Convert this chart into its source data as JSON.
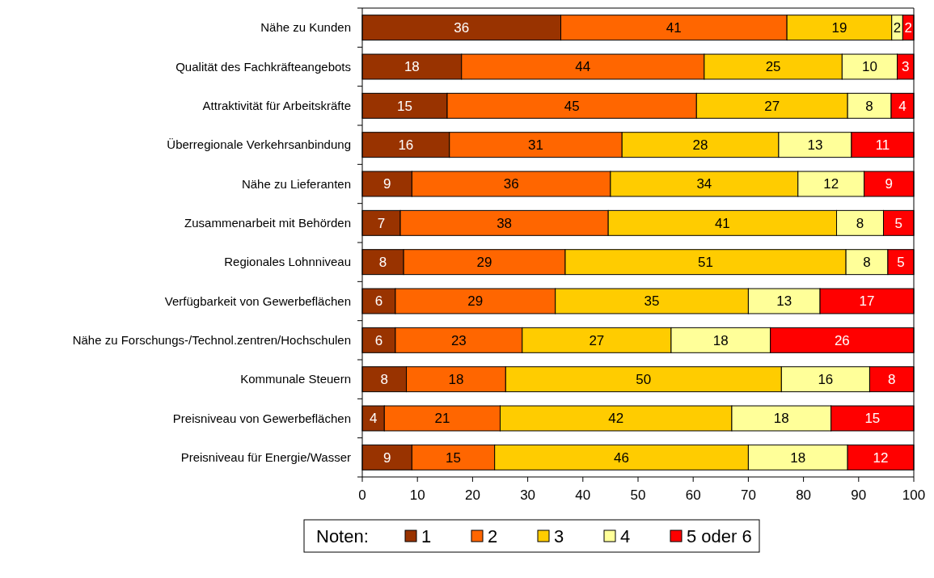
{
  "chart_data": {
    "type": "bar",
    "orientation": "horizontal",
    "stacked": true,
    "categories": [
      "Nähe zu Kunden",
      "Qualität des Fachkräfteangebots",
      "Attraktivität für Arbeitskräfte",
      "Überregionale Verkehrsanbindung",
      "Nähe zu Lieferanten",
      "Zusammenarbeit mit Behörden",
      "Regionales Lohnniveau",
      "Verfügbarkeit von Gewerbeflächen",
      "Nähe zu Forschungs-/Technol.zentren/Hochschulen",
      "Kommunale Steuern",
      "Preisniveau von Gewerbeflächen",
      "Preisniveau für Energie/Wasser"
    ],
    "series": [
      {
        "name": "1",
        "color": "#993300",
        "values": [
          36,
          18,
          15.4,
          15.8,
          9,
          6.9,
          7.5,
          6,
          6,
          8,
          4,
          9
        ],
        "value_labels": [
          "36",
          "18",
          "15",
          "16",
          "9",
          "7",
          "8",
          "6",
          "6",
          "8",
          "4",
          "9"
        ]
      },
      {
        "name": "2",
        "color": "#ff6600",
        "values": [
          41,
          44,
          45.2,
          31.3,
          36,
          37.7,
          29.3,
          29,
          23,
          18,
          21,
          15
        ],
        "value_labels": [
          "41",
          "44",
          "45",
          "31",
          "36",
          "38",
          "29",
          "29",
          "23",
          "18",
          "21",
          "15"
        ]
      },
      {
        "name": "3",
        "color": "#ffcc00",
        "values": [
          19,
          25,
          27.4,
          28.4,
          34,
          41.4,
          50.9,
          35,
          27,
          50,
          42,
          46
        ],
        "value_labels": [
          "19",
          "25",
          "27",
          "28",
          "34",
          "41",
          "51",
          "35",
          "27",
          "50",
          "42",
          "46"
        ]
      },
      {
        "name": "4",
        "color": "#ffff99",
        "values": [
          2,
          10,
          7.9,
          13.2,
          12,
          8.5,
          7.6,
          13,
          18,
          16,
          18,
          18
        ],
        "value_labels": [
          "2",
          "10",
          "8",
          "13",
          "12",
          "8",
          "8",
          "13",
          "18",
          "16",
          "18",
          "18"
        ]
      },
      {
        "name": "5 oder 6",
        "color": "#ff0000",
        "values": [
          2,
          3,
          4.1,
          11.3,
          9,
          5.5,
          4.7,
          17,
          26,
          8,
          15,
          12
        ],
        "value_labels": [
          "2",
          "3",
          "4",
          "11",
          "9",
          "5",
          "5",
          "17",
          "26",
          "8",
          "15",
          "12"
        ]
      }
    ],
    "xlim": [
      0,
      100
    ],
    "xticks": [
      0,
      10,
      20,
      30,
      40,
      50,
      60,
      70,
      80,
      90,
      100
    ],
    "legend": "bottom",
    "legend_title": "Noten:",
    "grid": false
  }
}
